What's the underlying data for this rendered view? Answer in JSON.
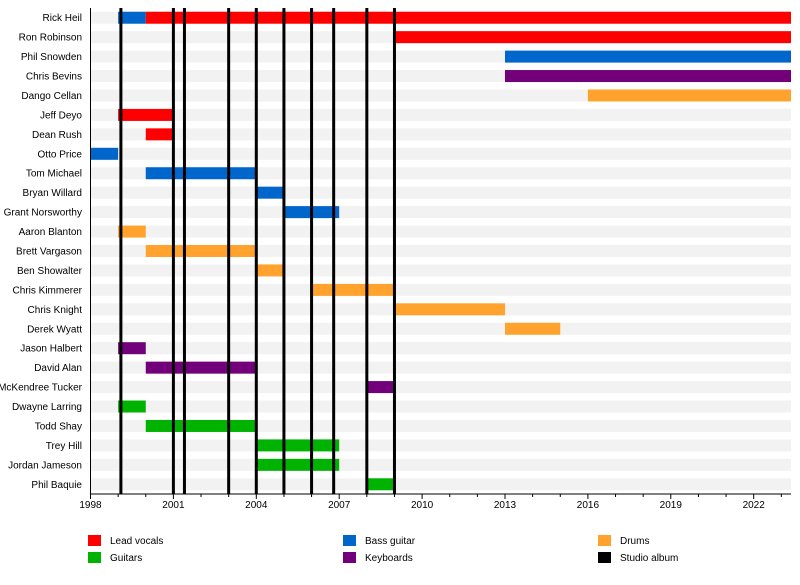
{
  "chart_data": {
    "type": "timeline",
    "xlim": [
      1998,
      2023.35
    ],
    "x_ticks": [
      1998,
      2001,
      2004,
      2007,
      2010,
      2013,
      2016,
      2019,
      2022
    ],
    "grid": false,
    "legend_placement": "bottom",
    "roles": [
      {
        "key": "vocals",
        "name": "Lead vocals",
        "color": "#ff0000"
      },
      {
        "key": "bass",
        "name": "Bass guitar",
        "color": "#0066cc"
      },
      {
        "key": "drums",
        "name": "Drums",
        "color": "#ffa22e"
      },
      {
        "key": "guitars",
        "name": "Guitars",
        "color": "#00b300"
      },
      {
        "key": "keys",
        "name": "Keyboards",
        "color": "#72007a"
      },
      {
        "key": "album",
        "name": "Studio album",
        "color": "#000000"
      }
    ],
    "members": [
      {
        "name": "Rick Heil",
        "spans": [
          {
            "role": "bass",
            "from": 1999,
            "to": 2000
          },
          {
            "role": "vocals",
            "from": 2000,
            "to": 2023.35
          }
        ]
      },
      {
        "name": "Ron Robinson",
        "spans": [
          {
            "role": "vocals",
            "from": 2009,
            "to": 2023.35
          }
        ]
      },
      {
        "name": "Phil Snowden",
        "spans": [
          {
            "role": "bass",
            "from": 2013,
            "to": 2023.35
          }
        ]
      },
      {
        "name": "Chris Bevins",
        "spans": [
          {
            "role": "keys",
            "from": 2013,
            "to": 2023.35
          }
        ]
      },
      {
        "name": "Dango Cellan",
        "spans": [
          {
            "role": "drums",
            "from": 2016,
            "to": 2023.35
          }
        ]
      },
      {
        "name": "Jeff Deyo",
        "spans": [
          {
            "role": "vocals",
            "from": 1999,
            "to": 2001
          }
        ]
      },
      {
        "name": "Dean Rush",
        "spans": [
          {
            "role": "vocals",
            "from": 2000,
            "to": 2001
          }
        ]
      },
      {
        "name": "Otto Price",
        "spans": [
          {
            "role": "bass",
            "from": 1998,
            "to": 1999
          }
        ]
      },
      {
        "name": "Tom Michael",
        "spans": [
          {
            "role": "bass",
            "from": 2000,
            "to": 2004
          }
        ]
      },
      {
        "name": "Bryan Willard",
        "spans": [
          {
            "role": "bass",
            "from": 2004,
            "to": 2005
          }
        ]
      },
      {
        "name": "Grant Norsworthy",
        "spans": [
          {
            "role": "bass",
            "from": 2005,
            "to": 2007
          }
        ]
      },
      {
        "name": "Aaron Blanton",
        "spans": [
          {
            "role": "drums",
            "from": 1999,
            "to": 2000
          }
        ]
      },
      {
        "name": "Brett Vargason",
        "spans": [
          {
            "role": "drums",
            "from": 2000,
            "to": 2004
          }
        ]
      },
      {
        "name": "Ben Showalter",
        "spans": [
          {
            "role": "drums",
            "from": 2004,
            "to": 2005
          }
        ]
      },
      {
        "name": "Chris Kimmerer",
        "spans": [
          {
            "role": "drums",
            "from": 2006,
            "to": 2009
          }
        ]
      },
      {
        "name": "Chris Knight",
        "spans": [
          {
            "role": "drums",
            "from": 2009,
            "to": 2013
          }
        ]
      },
      {
        "name": "Derek Wyatt",
        "spans": [
          {
            "role": "drums",
            "from": 2013,
            "to": 2015
          }
        ]
      },
      {
        "name": "Jason Halbert",
        "spans": [
          {
            "role": "keys",
            "from": 1999,
            "to": 2000
          }
        ]
      },
      {
        "name": "David Alan",
        "spans": [
          {
            "role": "keys",
            "from": 2000,
            "to": 2004
          }
        ]
      },
      {
        "name": "McKendree Tucker",
        "spans": [
          {
            "role": "keys",
            "from": 2008,
            "to": 2009
          }
        ]
      },
      {
        "name": "Dwayne Larring",
        "spans": [
          {
            "role": "guitars",
            "from": 1999,
            "to": 2000
          }
        ]
      },
      {
        "name": "Todd Shay",
        "spans": [
          {
            "role": "guitars",
            "from": 2000,
            "to": 2004
          }
        ]
      },
      {
        "name": "Trey Hill",
        "spans": [
          {
            "role": "guitars",
            "from": 2004,
            "to": 2007
          }
        ]
      },
      {
        "name": "Jordan Jameson",
        "spans": [
          {
            "role": "guitars",
            "from": 2004,
            "to": 2007
          }
        ]
      },
      {
        "name": "Phil Baquie",
        "spans": [
          {
            "role": "guitars",
            "from": 2008,
            "to": 2009
          }
        ]
      }
    ],
    "albums": [
      1999.1,
      2001.0,
      2001.4,
      2003.0,
      2004.0,
      2005.0,
      2006.0,
      2006.8,
      2008.0,
      2009.0
    ]
  }
}
